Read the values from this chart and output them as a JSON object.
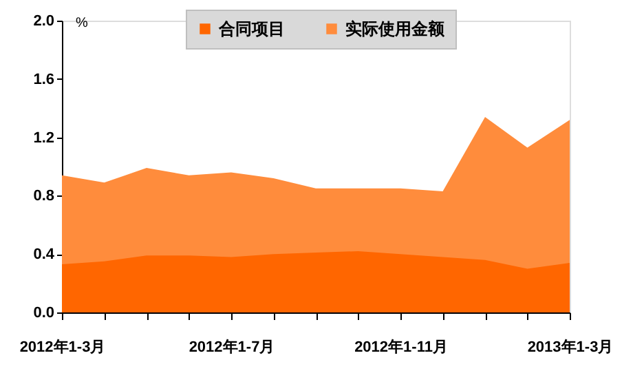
{
  "chart_data": {
    "type": "area",
    "ylabel": "%",
    "categories": [
      "2012年1-3月",
      null,
      null,
      null,
      "2012年1-7月",
      null,
      null,
      null,
      "2012年1-11月",
      null,
      null,
      null,
      "2013年1-3月"
    ],
    "series": [
      {
        "name": "合同项目",
        "color": "#ff6600",
        "values": [
          0.33,
          0.35,
          0.39,
          0.39,
          0.38,
          0.4,
          0.41,
          0.42,
          0.4,
          0.38,
          0.36,
          0.3,
          0.34
        ]
      },
      {
        "name": "实际使用金额",
        "color": "#ff8c3c",
        "values": [
          0.94,
          0.89,
          0.99,
          0.94,
          0.96,
          0.92,
          0.85,
          0.85,
          0.85,
          0.83,
          1.34,
          1.13,
          1.32
        ]
      }
    ],
    "ylim": [
      0,
      2.0
    ],
    "yticks": [
      {
        "value": 0,
        "label": "0.0"
      },
      0.4,
      0.8,
      1.2,
      1.6,
      {
        "value": 2,
        "label": "2.0"
      }
    ],
    "grid": false,
    "legend": "top"
  }
}
